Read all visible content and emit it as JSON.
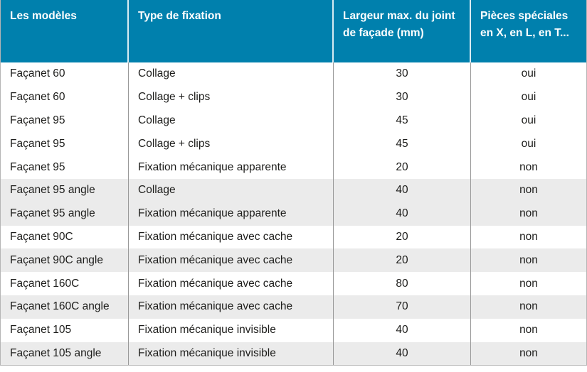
{
  "table": {
    "columns": [
      {
        "label": "Les modèles"
      },
      {
        "label": "Type de fixation"
      },
      {
        "label": "Largeur max. du joint de façade (mm)"
      },
      {
        "label": "Pièces spéciales en X, en L, en T..."
      }
    ],
    "rows": [
      {
        "model": "Façanet 60",
        "fixation": "Collage",
        "joint_width_mm": "30",
        "special_pieces": "oui",
        "shaded": false
      },
      {
        "model": "Façanet 60",
        "fixation": "Collage + clips",
        "joint_width_mm": "30",
        "special_pieces": "oui",
        "shaded": false
      },
      {
        "model": "Façanet 95",
        "fixation": "Collage",
        "joint_width_mm": "45",
        "special_pieces": "oui",
        "shaded": false
      },
      {
        "model": "Façanet 95",
        "fixation": "Collage + clips",
        "joint_width_mm": "45",
        "special_pieces": "oui",
        "shaded": false
      },
      {
        "model": "Façanet 95",
        "fixation": "Fixation mécanique apparente",
        "joint_width_mm": "20",
        "special_pieces": "non",
        "shaded": false
      },
      {
        "model": "Façanet 95 angle",
        "fixation": "Collage",
        "joint_width_mm": "40",
        "special_pieces": "non",
        "shaded": true
      },
      {
        "model": "Façanet 95 angle",
        "fixation": "Fixation mécanique apparente",
        "joint_width_mm": "40",
        "special_pieces": "non",
        "shaded": true
      },
      {
        "model": "Façanet 90C",
        "fixation": "Fixation mécanique avec cache",
        "joint_width_mm": "20",
        "special_pieces": "non",
        "shaded": false
      },
      {
        "model": "Façanet 90C angle",
        "fixation": "Fixation mécanique avec cache",
        "joint_width_mm": "20",
        "special_pieces": "non",
        "shaded": true
      },
      {
        "model": "Façanet 160C",
        "fixation": "Fixation mécanique avec cache",
        "joint_width_mm": "80",
        "special_pieces": "non",
        "shaded": false
      },
      {
        "model": "Façanet 160C angle",
        "fixation": "Fixation mécanique avec cache",
        "joint_width_mm": "70",
        "special_pieces": "non",
        "shaded": true
      },
      {
        "model": "Façanet 105",
        "fixation": "Fixation mécanique invisible",
        "joint_width_mm": "40",
        "special_pieces": "non",
        "shaded": false
      },
      {
        "model": "Façanet 105 angle",
        "fixation": "Fixation mécanique invisible",
        "joint_width_mm": "40",
        "special_pieces": "non",
        "shaded": true
      }
    ]
  },
  "colors": {
    "header_bg": "#0080ad",
    "header_text": "#ffffff",
    "row_alt_bg": "#ebebeb",
    "body_text": "#1d1d1b",
    "divider": "#999999",
    "outer_border": "#b5b5b5"
  }
}
